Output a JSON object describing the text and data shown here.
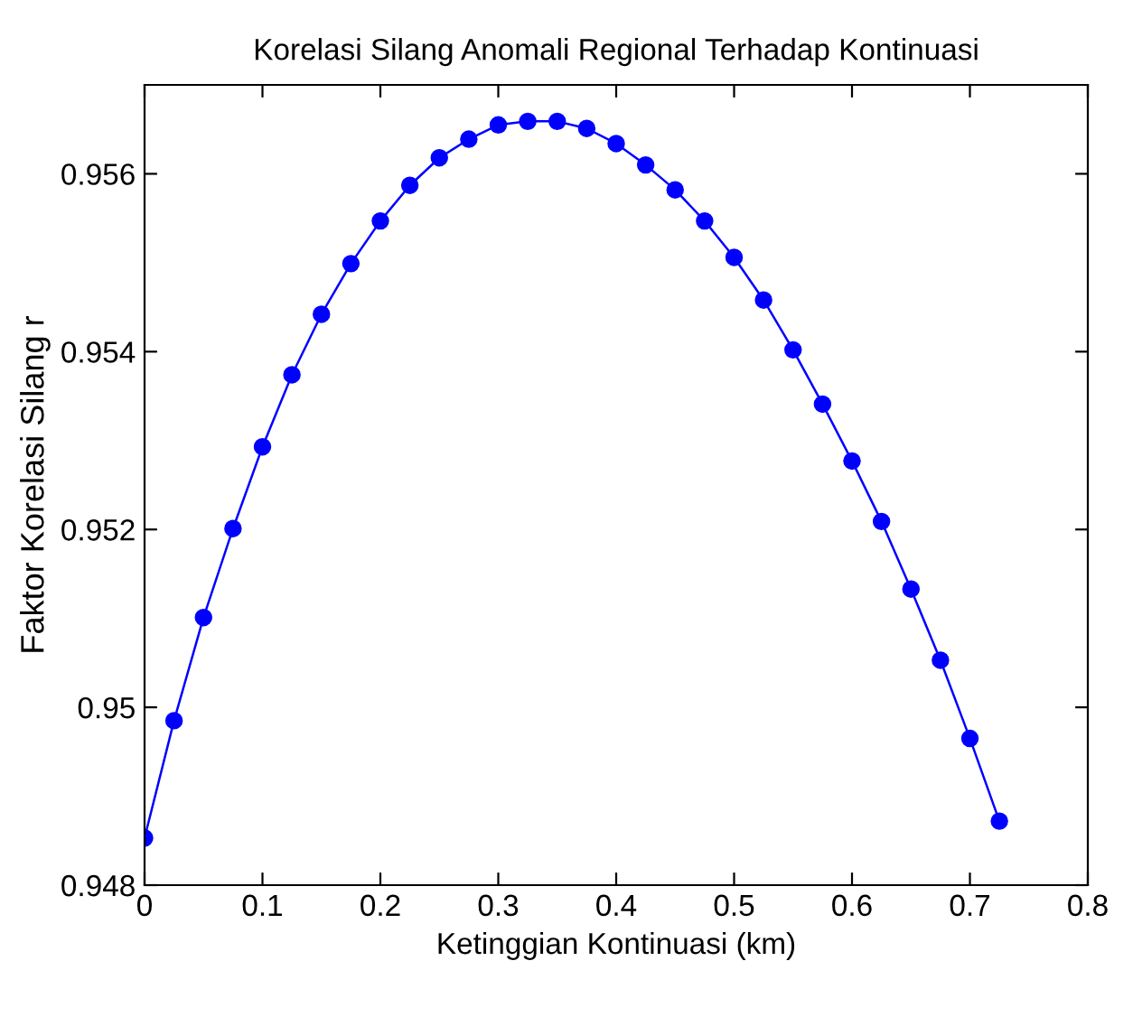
{
  "chart_data": {
    "type": "line",
    "title": "Korelasi Silang Anomali Regional Terhadap Kontinuasi",
    "xlabel": "Ketinggian Kontinuasi (km)",
    "ylabel": "Faktor Korelasi Silang r",
    "x": [
      0,
      0.025,
      0.05,
      0.075,
      0.1,
      0.125,
      0.15,
      0.175,
      0.2,
      0.225,
      0.25,
      0.275,
      0.3,
      0.325,
      0.35,
      0.375,
      0.4,
      0.425,
      0.45,
      0.475,
      0.5,
      0.525,
      0.55,
      0.575,
      0.6,
      0.625,
      0.65,
      0.675,
      0.7,
      0.725
    ],
    "series": [
      {
        "color": "#0000ff",
        "values": [
          0.94853,
          0.94985,
          0.95101,
          0.95201,
          0.95293,
          0.95374,
          0.95442,
          0.95499,
          0.95547,
          0.95587,
          0.95618,
          0.95639,
          0.95655,
          0.95659,
          0.95659,
          0.95651,
          0.95634,
          0.9561,
          0.95582,
          0.95547,
          0.95506,
          0.95458,
          0.95402,
          0.95341,
          0.95277,
          0.95209,
          0.95133,
          0.95053,
          0.94965,
          0.94872
        ]
      }
    ],
    "xlim": [
      0,
      0.8
    ],
    "xticks": [
      0,
      0.1,
      0.2,
      0.3,
      0.4,
      0.5,
      0.6,
      0.7,
      0.8
    ],
    "ylim": [
      0.948,
      0.957
    ],
    "yticks": [
      0.948,
      0.95,
      0.952,
      0.954,
      0.956
    ],
    "marker": "circle",
    "line_style": "solid",
    "grid": false,
    "legend": false
  }
}
